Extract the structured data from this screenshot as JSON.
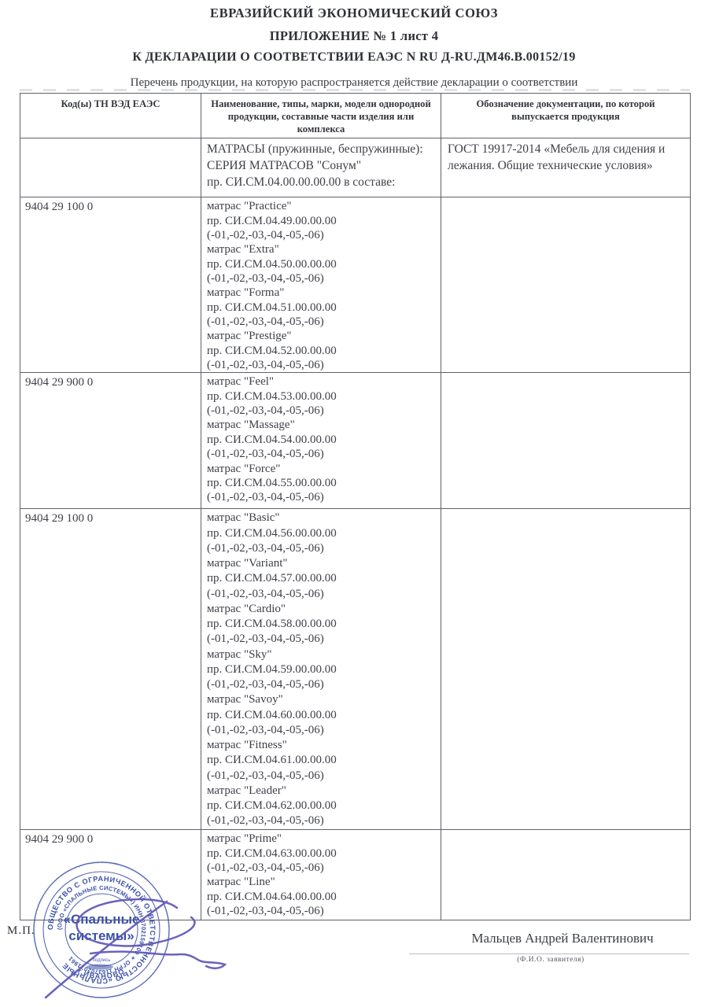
{
  "header": {
    "line1": "ЕВРАЗИЙСКИЙ ЭКОНОМИЧЕСКИЙ СОЮЗ",
    "line2": "ПРИЛОЖЕНИЕ № 1 лист 4",
    "line3": "К ДЕКЛАРАЦИИ О СООТВЕТСТВИИ ЕАЭС N RU Д-RU.ДМ46.В.00152/19",
    "subtitle": "Перечень продукции, на которую распространяется действие декларации о соответствии"
  },
  "table": {
    "columns": [
      "Код(ы) ТН ВЭД ЕАЭС",
      "Наименование, типы, марки, модели однородной продукции, составные части изделия или комплекса",
      "Обозначение документации, по которой выпускается продукция"
    ],
    "rows": [
      {
        "code": "",
        "products": [
          "МАТРАСЫ (пружинные, беспружинные):",
          "СЕРИЯ МАТРАСОВ \"Сонум\"",
          "пр. СИ.СМ.04.00.00.00.00 в составе:"
        ],
        "docs": "ГОСТ 19917-2014 «Мебель для сидения и лежания. Общие технические условия»"
      },
      {
        "code": "9404 29 100 0",
        "products": [
          "матрас \"Practice\"",
          "пр. СИ.СМ.04.49.00.00.00",
          "(-01,-02,-03,-04,-05,-06)",
          "матрас \"Extra\"",
          "пр. СИ.СМ.04.50.00.00.00",
          "(-01,-02,-03,-04,-05,-06)",
          "матрас \"Forma\"",
          "пр. СИ.СМ.04.51.00.00.00",
          "(-01,-02,-03,-04,-05,-06)",
          "матрас \"Prestige\"",
          "пр. СИ.СМ.04.52.00.00.00",
          "(-01,-02,-03,-04,-05,-06)"
        ],
        "docs": ""
      },
      {
        "code": "9404 29 900 0",
        "products": [
          "матрас \"Feel\"",
          "пр. СИ.СМ.04.53.00.00.00",
          "(-01,-02,-03,-04,-05,-06)",
          "матрас \"Massage\"",
          "пр. СИ.СМ.04.54.00.00.00",
          "(-01,-02,-03,-04,-05,-06)",
          "матрас \"Force\"",
          "пр. СИ.СМ.04.55.00.00.00",
          "(-01,-02,-03,-04,-05,-06)"
        ],
        "docs": ""
      },
      {
        "code": "9404 29 100 0",
        "products": [
          "матрас \"Basic\"",
          "пр. СИ.СМ.04.56.00.00.00",
          "(-01,-02,-03,-04,-05,-06)",
          "матрас \"Variant\"",
          "пр. СИ.СМ.04.57.00.00.00",
          "(-01,-02,-03,-04,-05,-06)",
          "матрас \"Cardio\"",
          "пр. СИ.СМ.04.58.00.00.00",
          "(-01,-02,-03,-04,-05,-06)",
          "матрас \"Sky\"",
          "пр. СИ.СМ.04.59.00.00.00",
          "(-01,-02,-03,-04,-05,-06)",
          "матрас \"Savoy\"",
          "пр. СИ.СМ.04.60.00.00.00",
          "(-01,-02,-03,-04,-05,-06)",
          "матрас \"Fitness\"",
          "пр. СИ.СМ.04.61.00.00.00",
          "(-01,-02,-03,-04,-05,-06)",
          "матрас \"Leader\"",
          "пр. СИ.СМ.04.62.00.00.00",
          "(-01,-02,-03,-04,-05,-06)"
        ],
        "docs": ""
      },
      {
        "code": "9404 29 900 0",
        "products": [
          "матрас \"Prime\"",
          "пр. СИ.СМ.04.63.00.00.00",
          "(-01,-02,-03,-04,-05,-06)",
          "матрас \"Line\"",
          "пр. СИ.СМ.04.64.00.00.00",
          "(-01,-02,-03,-04,-05,-06)"
        ],
        "docs": ""
      }
    ]
  },
  "footer": {
    "mp_label": "М.П.",
    "applicant_name": "Мальцев Андрей Валентинович",
    "applicant_caption": "(Ф.И.О. заявителя)"
  },
  "stamp": {
    "microtext_ring": "· · · · · · · · · · · · · · · · · · · · · · · · · · · · · · · · · · · · · · · · · · · · · · · · · · · · · · · · · · · · · · · · · · · ·",
    "ring_text_outer": "ОБЩЕСТВО С ОГРАНИЧЕННОЙ ОТВЕТСТВЕННОСТЬЮ «СПАЛЬНЫЕ",
    "ring_text_inner": "(ООО «СПАЛЬНЫЕ СИСТЕМЫ») ИНН 3702159100 ✶ ОГРН 1163702071961",
    "ring_text_bottom": "✶  г.ИВАНОВО  ✶",
    "center_line1": "«Спальные",
    "center_line2": "системы»",
    "signature_caption": "подпись"
  },
  "colors": {
    "stamp_blue": "#3c50a8",
    "signature_purple": "#5d55b8",
    "text_dark": "#3e4149",
    "border_gray": "#606269"
  }
}
